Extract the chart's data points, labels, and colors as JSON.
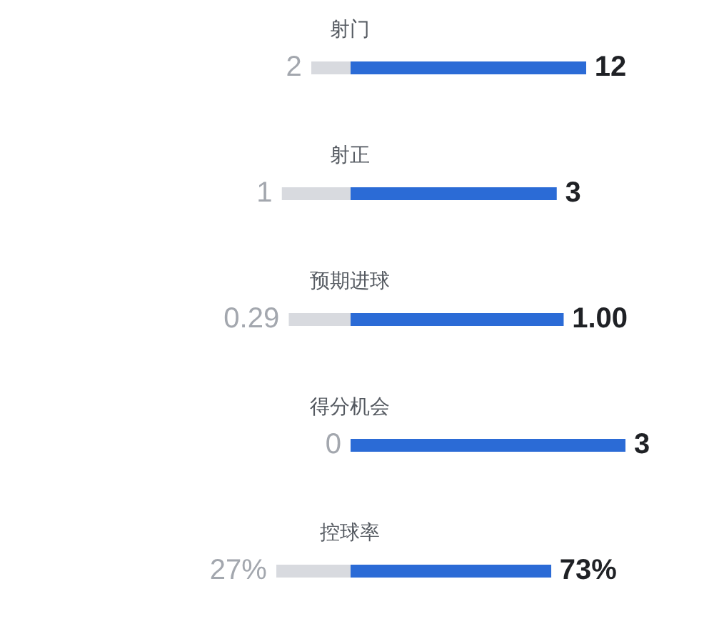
{
  "chart_data": [
    {
      "type": "bar",
      "orientation": "horizontal",
      "stacked": true,
      "categories": [
        "射门"
      ],
      "tick_labels": "y",
      "series": [
        {
          "color": "#d8dadf",
          "values": [
            2
          ],
          "value_labels": [
            "2"
          ]
        },
        {
          "color": "#2b6bd6",
          "values": [
            12
          ],
          "value_labels": [
            "12"
          ]
        }
      ]
    },
    {
      "type": "bar",
      "orientation": "horizontal",
      "stacked": true,
      "categories": [
        "射正"
      ],
      "tick_labels": "y",
      "series": [
        {
          "color": "#d8dadf",
          "values": [
            1
          ],
          "value_labels": [
            "1"
          ]
        },
        {
          "color": "#2b6bd6",
          "values": [
            3
          ],
          "value_labels": [
            "3"
          ]
        }
      ]
    },
    {
      "type": "bar",
      "orientation": "horizontal",
      "stacked": true,
      "categories": [
        "预期进球"
      ],
      "tick_labels": "y",
      "series": [
        {
          "color": "#d8dadf",
          "values": [
            0.29
          ],
          "value_labels": [
            "0.29"
          ]
        },
        {
          "color": "#2b6bd6",
          "values": [
            1
          ],
          "value_labels": [
            "1.00"
          ]
        }
      ]
    },
    {
      "type": "bar",
      "orientation": "horizontal",
      "stacked": true,
      "categories": [
        "得分机会"
      ],
      "tick_labels": "y",
      "series": [
        {
          "color": "#d8dadf",
          "values": [
            0
          ],
          "value_labels": [
            "0"
          ]
        },
        {
          "color": "#2b6bd6",
          "values": [
            3
          ],
          "value_labels": [
            "3"
          ]
        }
      ]
    },
    {
      "type": "bar",
      "orientation": "horizontal",
      "stacked": true,
      "categories": [
        "控球率"
      ],
      "tick_labels": "y",
      "series": [
        {
          "color": "#d8dadf",
          "values": [
            27
          ],
          "value_labels": [
            "27%"
          ]
        },
        {
          "color": "#2b6bd6",
          "values": [
            73
          ],
          "value_labels": [
            "73%"
          ]
        }
      ]
    }
  ]
}
